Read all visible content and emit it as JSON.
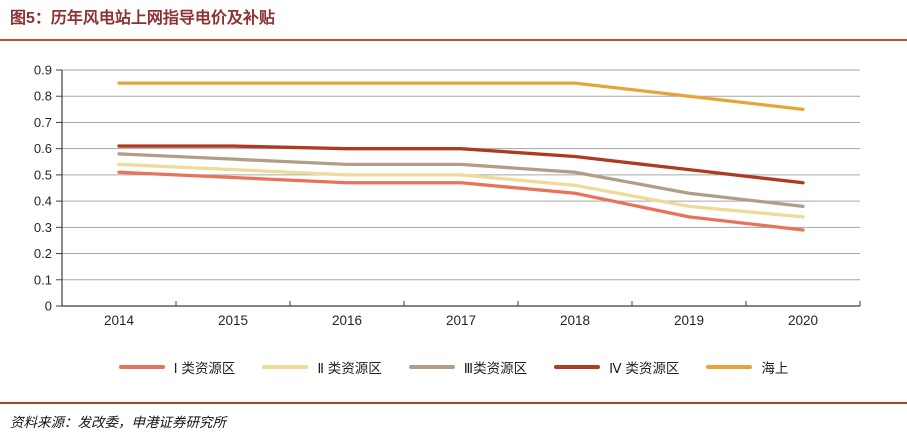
{
  "source_note": "资料来源：发改委，申港证券研究所",
  "colors": {
    "title": "#8C3231",
    "title_rule": "#C0522F",
    "footer_rule": "#A9431F",
    "gridline": "#A6A6A6",
    "axis": "#3F3F3F",
    "tick_label": "#262626"
  },
  "chart_data": {
    "type": "line",
    "title": "图5：历年风电站上网指导电价及补贴",
    "x": [
      "2014",
      "2015",
      "2016",
      "2017",
      "2018",
      "2019",
      "2020"
    ],
    "series": [
      {
        "name": "Ⅰ 类资源区",
        "color": "#E8735A",
        "values": [
          0.51,
          0.49,
          0.47,
          0.47,
          0.43,
          0.34,
          0.29
        ]
      },
      {
        "name": "Ⅱ 类资源区",
        "color": "#EFDA9A",
        "values": [
          0.54,
          0.52,
          0.5,
          0.5,
          0.46,
          0.38,
          0.34
        ]
      },
      {
        "name": "Ⅲ类资源区",
        "color": "#B19E86",
        "values": [
          0.58,
          0.56,
          0.54,
          0.54,
          0.51,
          0.43,
          0.38
        ]
      },
      {
        "name": "Ⅳ 类资源区",
        "color": "#AC3B22",
        "values": [
          0.61,
          0.61,
          0.6,
          0.6,
          0.57,
          0.52,
          0.47
        ]
      },
      {
        "name": "海上",
        "color": "#E8A33D",
        "values": [
          0.85,
          0.85,
          0.85,
          0.85,
          0.85,
          0.8,
          0.75
        ]
      }
    ],
    "xlabel": "",
    "ylabel": "",
    "ylim": [
      0,
      0.9
    ],
    "ytick_step": 0.1,
    "ytick_labels": [
      "0",
      "0.1",
      "0.2",
      "0.3",
      "0.4",
      "0.5",
      "0.6",
      "0.7",
      "0.8",
      "0.9"
    ],
    "grid": true,
    "legend_position": "bottom"
  }
}
